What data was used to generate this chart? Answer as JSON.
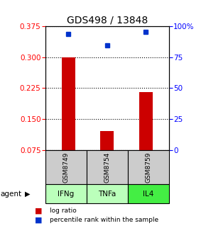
{
  "title": "GDS498 / 13848",
  "samples": [
    "GSM8749",
    "GSM8754",
    "GSM8759"
  ],
  "agents": [
    "IFNg",
    "TNFa",
    "IL4"
  ],
  "bar_values": [
    0.3,
    0.12,
    0.215
  ],
  "blue_values": [
    0.356,
    0.328,
    0.362
  ],
  "ylim_left": [
    0.075,
    0.375
  ],
  "yticks_left": [
    0.075,
    0.15,
    0.225,
    0.3,
    0.375
  ],
  "yticks_right": [
    0,
    25,
    50,
    75,
    100
  ],
  "bar_color": "#cc0000",
  "blue_color": "#0033cc",
  "sample_box_color": "#cccccc",
  "agent_box_colors": [
    "#bbffbb",
    "#bbffbb",
    "#44ee44"
  ],
  "legend_bar_label": "log ratio",
  "legend_blue_label": "percentile rank within the sample",
  "title_fontsize": 10,
  "tick_fontsize": 7.5,
  "bar_width": 0.35
}
